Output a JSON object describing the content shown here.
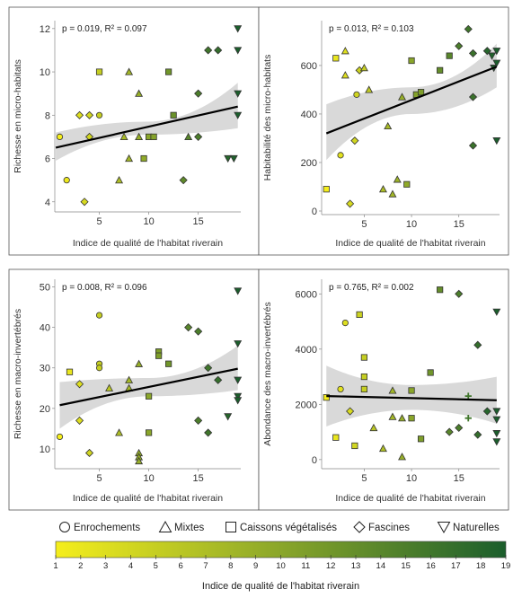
{
  "chart_data": [
    {
      "type": "scatter",
      "id": "p1",
      "annotation": "p = 0.019, R² = 0.097",
      "xlabel": "Indice de qualité de l'habitat riverain",
      "ylabel": "Richesse en micro-habitats",
      "xlim": [
        0.5,
        19.3
      ],
      "ylim": [
        3.7,
        12.2
      ],
      "xticks": [
        5,
        10,
        15
      ],
      "yticks": [
        4,
        6,
        8,
        10,
        12
      ],
      "fit": {
        "x0": 0.6,
        "y0": 6.5,
        "x1": 19,
        "y1": 8.4
      },
      "band": {
        "lo0": 5.9,
        "hi0": 7.2,
        "lom": 7.1,
        "him": 7.7,
        "lo1": 7.4,
        "hi1": 9.5
      },
      "points": [
        {
          "x": 1,
          "y": 7,
          "shape": "circle"
        },
        {
          "x": 1.7,
          "y": 5,
          "shape": "circle"
        },
        {
          "x": 3,
          "y": 8,
          "shape": "diamond"
        },
        {
          "x": 3.5,
          "y": 4,
          "shape": "diamond"
        },
        {
          "x": 4,
          "y": 7,
          "shape": "diamond"
        },
        {
          "x": 4,
          "y": 8,
          "shape": "diamond"
        },
        {
          "x": 5,
          "y": 10,
          "shape": "square"
        },
        {
          "x": 5,
          "y": 8,
          "shape": "circle"
        },
        {
          "x": 7,
          "y": 5,
          "shape": "triangle"
        },
        {
          "x": 7.5,
          "y": 7,
          "shape": "triangle"
        },
        {
          "x": 8,
          "y": 10,
          "shape": "triangle"
        },
        {
          "x": 8,
          "y": 6,
          "shape": "triangle"
        },
        {
          "x": 9,
          "y": 9,
          "shape": "triangle"
        },
        {
          "x": 9,
          "y": 7,
          "shape": "triangle"
        },
        {
          "x": 9.5,
          "y": 6,
          "shape": "square"
        },
        {
          "x": 10,
          "y": 7,
          "shape": "square"
        },
        {
          "x": 10.5,
          "y": 7,
          "shape": "square"
        },
        {
          "x": 12,
          "y": 10,
          "shape": "square"
        },
        {
          "x": 12.5,
          "y": 8,
          "shape": "square"
        },
        {
          "x": 13.5,
          "y": 5,
          "shape": "diamond"
        },
        {
          "x": 14,
          "y": 7,
          "shape": "triangle"
        },
        {
          "x": 15,
          "y": 7,
          "shape": "diamond"
        },
        {
          "x": 15,
          "y": 9,
          "shape": "diamond"
        },
        {
          "x": 16,
          "y": 11,
          "shape": "diamond"
        },
        {
          "x": 17,
          "y": 11,
          "shape": "diamond"
        },
        {
          "x": 18,
          "y": 6,
          "shape": "inv-triangle"
        },
        {
          "x": 18.6,
          "y": 6,
          "shape": "inv-triangle"
        },
        {
          "x": 19,
          "y": 12,
          "shape": "inv-triangle"
        },
        {
          "x": 19,
          "y": 11,
          "shape": "inv-triangle"
        },
        {
          "x": 19,
          "y": 9,
          "shape": "inv-triangle"
        },
        {
          "x": 19,
          "y": 8,
          "shape": "inv-triangle"
        }
      ]
    },
    {
      "type": "scatter",
      "id": "p2",
      "annotation": "p = 0.013, R² = 0.103",
      "xlabel": "Indice de qualité de l'habitat riverain",
      "ylabel": "Habitabilité des micro-habitats",
      "xlim": [
        0.5,
        19.3
      ],
      "ylim": [
        0,
        770
      ],
      "xticks": [
        5,
        10,
        15
      ],
      "yticks": [
        0,
        200,
        400,
        600
      ],
      "fit": {
        "x0": 1,
        "y0": 320,
        "x1": 19,
        "y1": 595
      },
      "band": {
        "lo0": 210,
        "hi0": 440,
        "lom": 400,
        "him": 510,
        "lo1": 510,
        "hi1": 690
      },
      "points": [
        {
          "x": 1,
          "y": 90,
          "shape": "square"
        },
        {
          "x": 2,
          "y": 630,
          "shape": "square"
        },
        {
          "x": 2.5,
          "y": 230,
          "shape": "circle"
        },
        {
          "x": 3,
          "y": 660,
          "shape": "triangle"
        },
        {
          "x": 3,
          "y": 560,
          "shape": "triangle"
        },
        {
          "x": 3.5,
          "y": 30,
          "shape": "diamond"
        },
        {
          "x": 4,
          "y": 290,
          "shape": "diamond"
        },
        {
          "x": 4.2,
          "y": 480,
          "shape": "circle"
        },
        {
          "x": 4.5,
          "y": 580,
          "shape": "diamond"
        },
        {
          "x": 5,
          "y": 590,
          "shape": "triangle"
        },
        {
          "x": 5.5,
          "y": 500,
          "shape": "triangle"
        },
        {
          "x": 7,
          "y": 90,
          "shape": "triangle"
        },
        {
          "x": 7.5,
          "y": 350,
          "shape": "triangle"
        },
        {
          "x": 8,
          "y": 70,
          "shape": "triangle"
        },
        {
          "x": 8.5,
          "y": 130,
          "shape": "triangle"
        },
        {
          "x": 9,
          "y": 470,
          "shape": "triangle"
        },
        {
          "x": 9.5,
          "y": 110,
          "shape": "square"
        },
        {
          "x": 10,
          "y": 620,
          "shape": "square"
        },
        {
          "x": 10.5,
          "y": 480,
          "shape": "square"
        },
        {
          "x": 11,
          "y": 490,
          "shape": "square"
        },
        {
          "x": 13,
          "y": 580,
          "shape": "square"
        },
        {
          "x": 14,
          "y": 640,
          "shape": "square"
        },
        {
          "x": 15,
          "y": 680,
          "shape": "diamond"
        },
        {
          "x": 16,
          "y": 750,
          "shape": "diamond"
        },
        {
          "x": 16.5,
          "y": 650,
          "shape": "diamond"
        },
        {
          "x": 16.5,
          "y": 470,
          "shape": "diamond"
        },
        {
          "x": 16.5,
          "y": 270,
          "shape": "diamond"
        },
        {
          "x": 18,
          "y": 660,
          "shape": "diamond"
        },
        {
          "x": 18.5,
          "y": 640,
          "shape": "inv-triangle"
        },
        {
          "x": 18.7,
          "y": 590,
          "shape": "inv-triangle"
        },
        {
          "x": 19,
          "y": 660,
          "shape": "inv-triangle"
        },
        {
          "x": 19,
          "y": 610,
          "shape": "inv-triangle"
        },
        {
          "x": 19,
          "y": 290,
          "shape": "inv-triangle"
        }
      ]
    },
    {
      "type": "scatter",
      "id": "p3",
      "annotation": "p = 0.008, R² = 0.096",
      "xlabel": "Indice de qualité de l'habitat riverain",
      "ylabel": "Richesse en macro-invertébrés",
      "xlim": [
        0.5,
        19.3
      ],
      "ylim": [
        6,
        51
      ],
      "xticks": [
        5,
        10,
        15
      ],
      "yticks": [
        10,
        20,
        30,
        40,
        50
      ],
      "fit": {
        "x0": 1,
        "y0": 20.8,
        "x1": 19,
        "y1": 29.8
      },
      "band": {
        "lo0": 15,
        "hi0": 26.5,
        "lom": 23,
        "him": 27.5,
        "lo1": 24.5,
        "hi1": 35.5
      },
      "points": [
        {
          "x": 1,
          "y": 13,
          "shape": "circle"
        },
        {
          "x": 2,
          "y": 29,
          "shape": "square"
        },
        {
          "x": 3,
          "y": 26,
          "shape": "diamond"
        },
        {
          "x": 3,
          "y": 17,
          "shape": "diamond"
        },
        {
          "x": 4,
          "y": 9,
          "shape": "diamond"
        },
        {
          "x": 5,
          "y": 43,
          "shape": "circle"
        },
        {
          "x": 5,
          "y": 31,
          "shape": "circle"
        },
        {
          "x": 5,
          "y": 30,
          "shape": "circle"
        },
        {
          "x": 6,
          "y": 25,
          "shape": "triangle"
        },
        {
          "x": 7,
          "y": 14,
          "shape": "triangle"
        },
        {
          "x": 8,
          "y": 27,
          "shape": "triangle"
        },
        {
          "x": 8,
          "y": 25,
          "shape": "triangle"
        },
        {
          "x": 9,
          "y": 31,
          "shape": "triangle"
        },
        {
          "x": 9,
          "y": 9,
          "shape": "triangle"
        },
        {
          "x": 9,
          "y": 8,
          "shape": "triangle"
        },
        {
          "x": 9,
          "y": 7,
          "shape": "triangle"
        },
        {
          "x": 10,
          "y": 23,
          "shape": "square"
        },
        {
          "x": 10,
          "y": 14,
          "shape": "square"
        },
        {
          "x": 11,
          "y": 34,
          "shape": "square"
        },
        {
          "x": 11,
          "y": 33,
          "shape": "square"
        },
        {
          "x": 12,
          "y": 31,
          "shape": "square"
        },
        {
          "x": 14,
          "y": 40,
          "shape": "diamond"
        },
        {
          "x": 15,
          "y": 39,
          "shape": "diamond"
        },
        {
          "x": 15,
          "y": 17,
          "shape": "diamond"
        },
        {
          "x": 16,
          "y": 30,
          "shape": "diamond"
        },
        {
          "x": 16,
          "y": 14,
          "shape": "diamond"
        },
        {
          "x": 17,
          "y": 27,
          "shape": "diamond"
        },
        {
          "x": 18,
          "y": 18,
          "shape": "inv-triangle"
        },
        {
          "x": 19,
          "y": 49,
          "shape": "inv-triangle"
        },
        {
          "x": 19,
          "y": 36,
          "shape": "inv-triangle"
        },
        {
          "x": 19,
          "y": 27,
          "shape": "inv-triangle"
        },
        {
          "x": 19,
          "y": 23,
          "shape": "inv-triangle"
        },
        {
          "x": 19,
          "y": 22,
          "shape": "inv-triangle"
        }
      ]
    },
    {
      "type": "scatter",
      "id": "p4",
      "annotation": "p = 0.765, R² = 0.002",
      "xlabel": "Indice de qualité de l'habitat riverain",
      "ylabel": "Abondance des macro-invertébrés",
      "xlim": [
        0.5,
        19.3
      ],
      "ylim": [
        -200,
        6400
      ],
      "xticks": [
        5,
        10,
        15
      ],
      "yticks": [
        0,
        2000,
        4000,
        6000
      ],
      "fit": {
        "x0": 1,
        "y0": 2300,
        "x1": 19,
        "y1": 2150
      },
      "band": {
        "lo0": 1200,
        "hi0": 3400,
        "lom": 1800,
        "him": 2700,
        "lo1": 1300,
        "hi1": 3000
      },
      "points": [
        {
          "x": 1,
          "y": 2250,
          "shape": "square"
        },
        {
          "x": 2,
          "y": 800,
          "shape": "square"
        },
        {
          "x": 2.5,
          "y": 2550,
          "shape": "circle"
        },
        {
          "x": 3,
          "y": 4950,
          "shape": "circle"
        },
        {
          "x": 3.5,
          "y": 1750,
          "shape": "diamond"
        },
        {
          "x": 4,
          "y": 500,
          "shape": "square"
        },
        {
          "x": 4.5,
          "y": 5250,
          "shape": "square"
        },
        {
          "x": 5,
          "y": 3700,
          "shape": "square"
        },
        {
          "x": 5,
          "y": 3000,
          "shape": "square"
        },
        {
          "x": 5,
          "y": 2550,
          "shape": "square"
        },
        {
          "x": 6,
          "y": 1150,
          "shape": "triangle"
        },
        {
          "x": 7,
          "y": 400,
          "shape": "triangle"
        },
        {
          "x": 8,
          "y": 2500,
          "shape": "triangle"
        },
        {
          "x": 8,
          "y": 1550,
          "shape": "triangle"
        },
        {
          "x": 9,
          "y": 1500,
          "shape": "triangle"
        },
        {
          "x": 9,
          "y": 100,
          "shape": "triangle"
        },
        {
          "x": 10,
          "y": 2500,
          "shape": "square"
        },
        {
          "x": 10,
          "y": 1500,
          "shape": "square"
        },
        {
          "x": 11,
          "y": 750,
          "shape": "square"
        },
        {
          "x": 12,
          "y": 3150,
          "shape": "square"
        },
        {
          "x": 13,
          "y": 6150,
          "shape": "square"
        },
        {
          "x": 14,
          "y": 1000,
          "shape": "diamond"
        },
        {
          "x": 15,
          "y": 6000,
          "shape": "diamond"
        },
        {
          "x": 15,
          "y": 1150,
          "shape": "diamond"
        },
        {
          "x": 16,
          "y": 2300,
          "shape": "plus"
        },
        {
          "x": 16,
          "y": 1500,
          "shape": "plus"
        },
        {
          "x": 17,
          "y": 4150,
          "shape": "diamond"
        },
        {
          "x": 17,
          "y": 900,
          "shape": "diamond"
        },
        {
          "x": 18,
          "y": 1750,
          "shape": "diamond"
        },
        {
          "x": 19,
          "y": 5350,
          "shape": "inv-triangle"
        },
        {
          "x": 19,
          "y": 1750,
          "shape": "inv-triangle"
        },
        {
          "x": 19,
          "y": 1450,
          "shape": "inv-triangle"
        },
        {
          "x": 19,
          "y": 950,
          "shape": "inv-triangle"
        },
        {
          "x": 19,
          "y": 650,
          "shape": "inv-triangle"
        }
      ]
    }
  ],
  "legend": {
    "shapes": [
      {
        "label": "Enrochements",
        "shape": "circle"
      },
      {
        "label": "Mixtes",
        "shape": "triangle"
      },
      {
        "label": "Caissons végétalisés",
        "shape": "square"
      },
      {
        "label": "Fascines",
        "shape": "diamond"
      },
      {
        "label": "Naturelles",
        "shape": "inv-triangle"
      }
    ],
    "colorbar": {
      "ticks": [
        "1",
        "2",
        "3",
        "4",
        "5",
        "6",
        "7",
        "8",
        "9",
        "10",
        "11",
        "12",
        "13",
        "14",
        "15",
        "16",
        "17",
        "18",
        "19"
      ],
      "title": "Indice de qualité de l'habitat riverain",
      "colors": [
        "#f5ee1c",
        "#1b5e2c"
      ]
    }
  },
  "style": {
    "band_color": "#d9d9d9",
    "fit_color": "#000000"
  }
}
